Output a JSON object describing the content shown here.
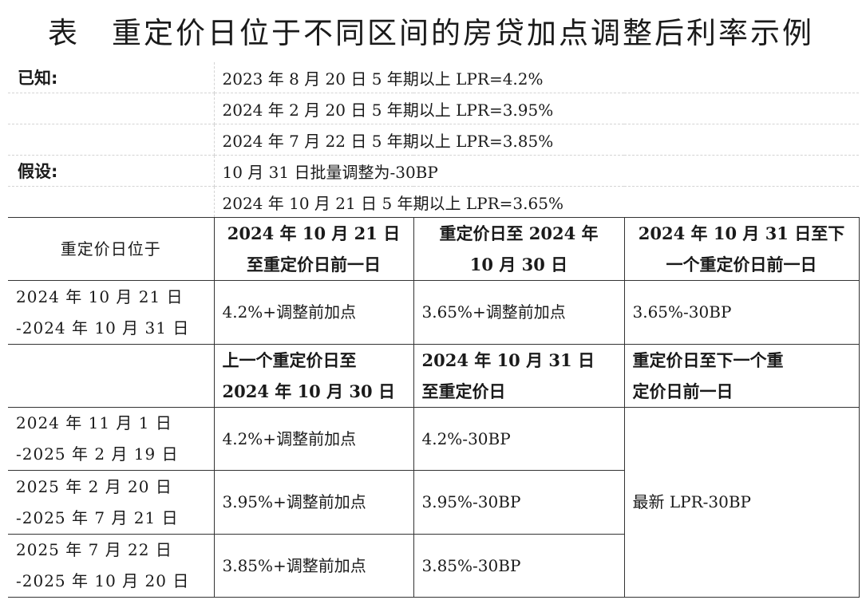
{
  "title": {
    "label": "表",
    "text": "重定价日位于不同区间的房贷加点调整后利率示例"
  },
  "known": {
    "label": "已知:",
    "items": [
      "2023 年 8 月 20 日 5 年期以上 LPR=4.2%",
      "2024 年 2 月 20 日 5 年期以上 LPR=3.95%",
      "2024 年 7 月 22 日 5 年期以上 LPR=3.85%"
    ]
  },
  "assume": {
    "label": "假设:",
    "items": [
      "10 月 31 日批量调整为-30BP",
      "2024 年 10 月 21 日 5 年期以上 LPR=3.65%"
    ]
  },
  "section1": {
    "corner": "重定价日位于",
    "headers": [
      [
        "2024 年 10 月 21 日",
        "至重定价日前一日"
      ],
      [
        "重定价日至 2024 年",
        "10 月 30 日"
      ],
      [
        "2024 年 10 月 31 日至下",
        "一个重定价日前一日"
      ]
    ],
    "row": {
      "period": [
        "2024 年 10 月 21 日",
        "-2024 年 10 月 31 日"
      ],
      "cells": [
        "4.2%+调整前加点",
        "3.65%+调整前加点",
        "3.65%-30BP"
      ]
    }
  },
  "section2": {
    "headers": [
      [
        "上一个重定价日至",
        "2024 年 10 月 30 日"
      ],
      [
        "2024 年 10 月 31 日",
        "至重定价日"
      ],
      [
        "重定价日至下一个重",
        "定价日前一日"
      ]
    ],
    "merged": "最新 LPR-30BP",
    "rows": [
      {
        "period": [
          "2024 年 11 月 1 日",
          "-2025 年 2 月 19 日"
        ],
        "cells": [
          "4.2%+调整前加点",
          "4.2%-30BP"
        ]
      },
      {
        "period": [
          "2025 年 2 月 20 日",
          "-2025 年 7 月 21 日"
        ],
        "cells": [
          "3.95%+调整前加点",
          "3.95%-30BP"
        ]
      },
      {
        "period": [
          "2025 年 7 月 22 日",
          "-2025 年 10 月 20 日"
        ],
        "cells": [
          "3.85%+调整前加点",
          "3.85%-30BP"
        ]
      }
    ]
  }
}
